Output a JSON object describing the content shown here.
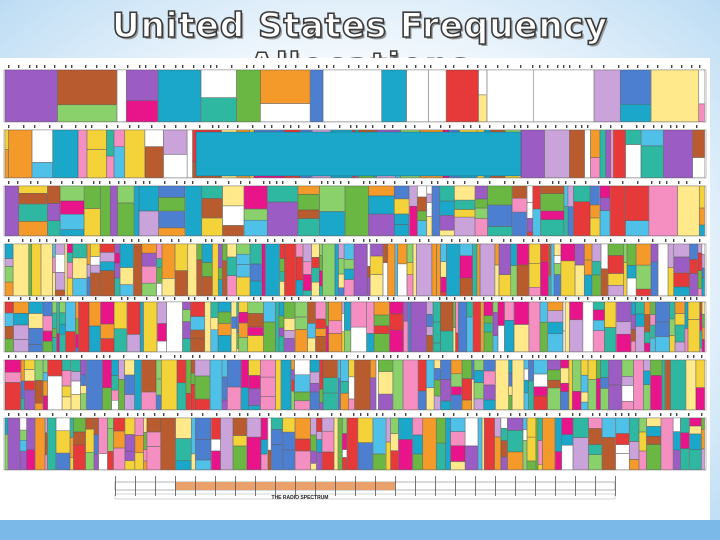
{
  "slide": {
    "title": "United States Frequency Allocations"
  },
  "chart": {
    "legend_title": "THE RADIO SPECTRUM",
    "legend_subtitle": "",
    "palette": [
      "#e8158a",
      "#1aa7c9",
      "#6ab843",
      "#f39a2a",
      "#9b5cc4",
      "#f4d23a",
      "#ffffff",
      "#e63a3a",
      "#4d7fd1",
      "#c9a3d9",
      "#8ad06b",
      "#f58fc1",
      "#2fb8a1",
      "#b85c2f",
      "#ffe98a",
      "#4fc1e9"
    ]
  },
  "colors": {
    "background": "#7ab9e8",
    "slide_center": "#ffffff",
    "title_stroke": "#3a3a3a"
  }
}
